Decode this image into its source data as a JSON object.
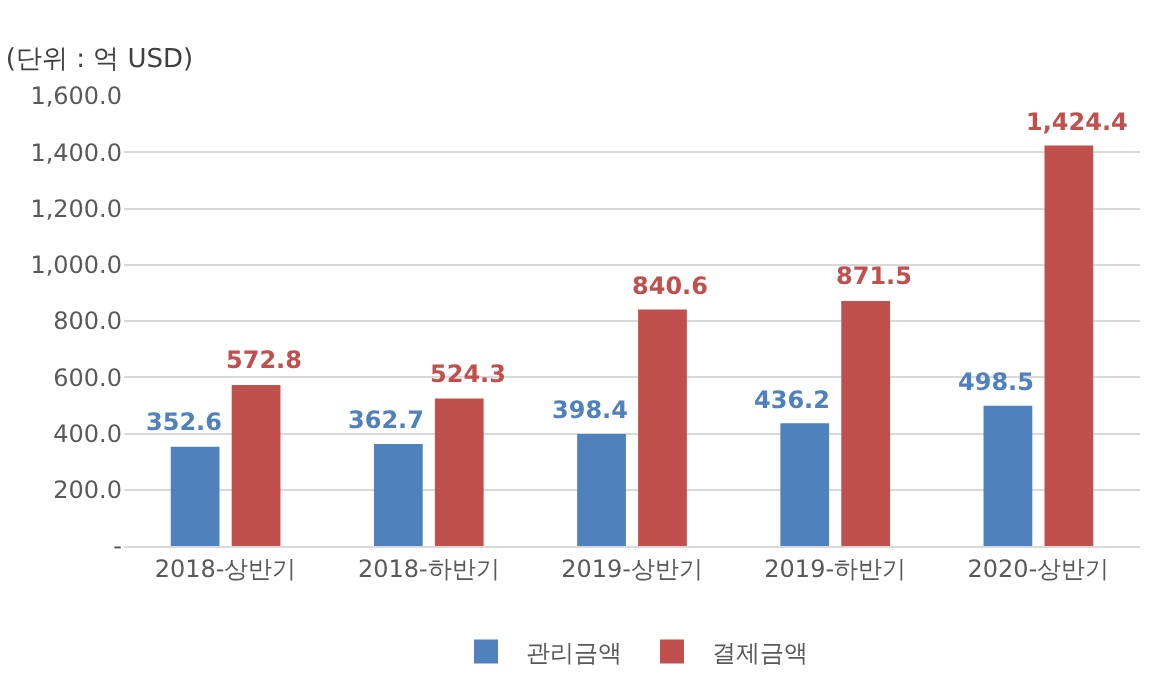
{
  "chart_data": {
    "type": "bar",
    "title": "(단위 : 억 USD)",
    "categories": [
      "2018-상반기",
      "2018-하반기",
      "2019-상반기",
      "2019-하반기",
      "2020-상반기"
    ],
    "series": [
      {
        "name": "관리금액",
        "color": "#4f81bd",
        "values": [
          352.6,
          362.7,
          398.4,
          436.2,
          498.5
        ],
        "value_labels": [
          "352.6",
          "362.7",
          "398.4",
          "436.2",
          "498.5"
        ]
      },
      {
        "name": "결제금액",
        "color": "#c0504d",
        "values": [
          572.8,
          524.3,
          840.6,
          871.5,
          1424.4
        ],
        "value_labels": [
          "572.8",
          "524.3",
          "840.6",
          "871.5",
          "1,424.4"
        ]
      }
    ],
    "ylim": [
      0,
      1600
    ],
    "yticks": [
      {
        "value": 0,
        "label": "-"
      },
      {
        "value": 200,
        "label": "200.0"
      },
      {
        "value": 400,
        "label": "400.0"
      },
      {
        "value": 600,
        "label": "600.0"
      },
      {
        "value": 800,
        "label": "800.0"
      },
      {
        "value": 1000,
        "label": "1,000.0"
      },
      {
        "value": 1200,
        "label": "1,200.0"
      },
      {
        "value": 1400,
        "label": "1,400.0"
      },
      {
        "value": 1600,
        "label": "1,600.0"
      }
    ],
    "grid": "y",
    "legend": "bottom"
  }
}
